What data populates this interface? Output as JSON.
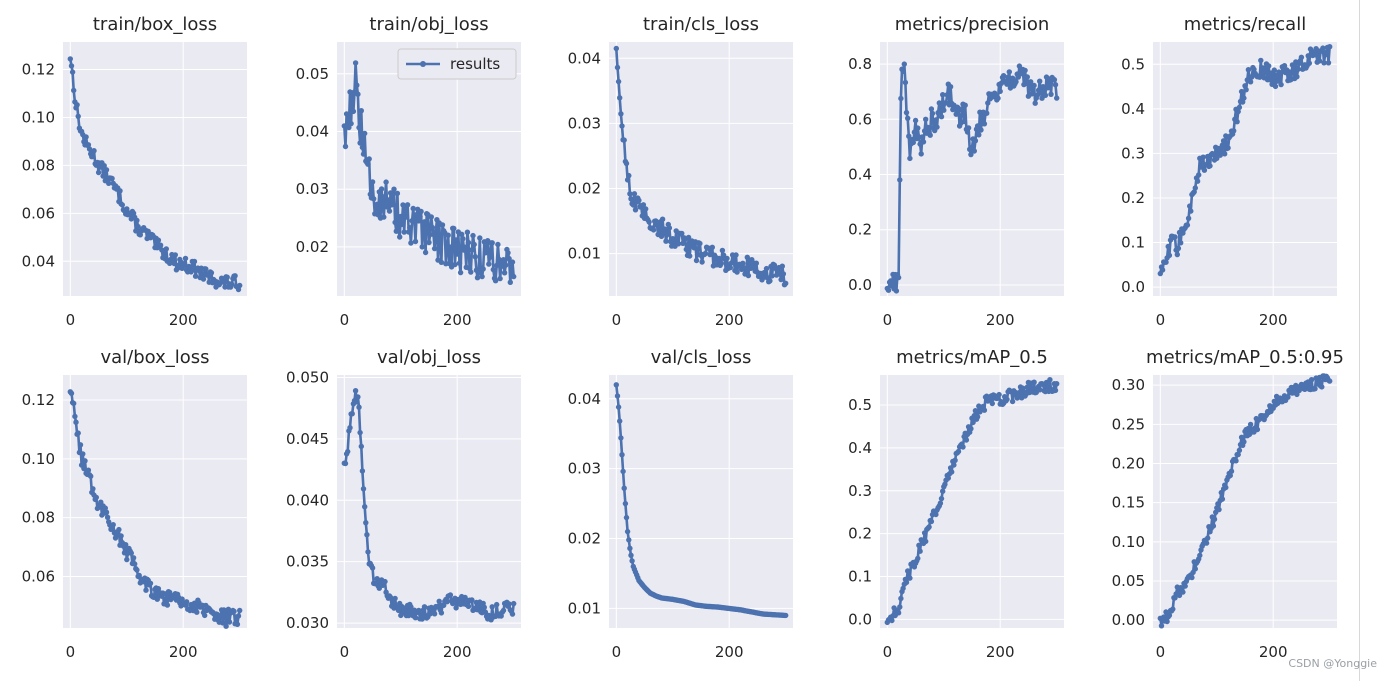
{
  "watermark": "CSDN @Yonggie",
  "style": {
    "panel_bg": "#eaeaf2",
    "grid": "#ffffff",
    "series_color": "#4c72b0",
    "text_color": "#262626",
    "legend_border": "#cccccc"
  },
  "chart_data": [
    {
      "type": "line",
      "title": "train/box_loss",
      "x": [
        0,
        10,
        20,
        30,
        40,
        50,
        60,
        70,
        80,
        90,
        100,
        110,
        120,
        130,
        140,
        150,
        160,
        170,
        180,
        190,
        200,
        210,
        220,
        230,
        240,
        250,
        260,
        270,
        280,
        290,
        300
      ],
      "series": [
        {
          "values": [
            0.126,
            0.105,
            0.093,
            0.088,
            0.085,
            0.08,
            0.077,
            0.074,
            0.07,
            0.066,
            0.061,
            0.058,
            0.054,
            0.052,
            0.05,
            0.047,
            0.045,
            0.043,
            0.041,
            0.039,
            0.039,
            0.038,
            0.037,
            0.035,
            0.034,
            0.033,
            0.032,
            0.031,
            0.031,
            0.031,
            0.031
          ]
        }
      ],
      "xticks": [
        0,
        200
      ],
      "yticks": [
        0.04,
        0.06,
        0.08,
        0.1,
        0.12
      ],
      "ytick_labels": [
        "0.04",
        "0.06",
        "0.08",
        "0.10",
        "0.12"
      ],
      "xlim": [
        -13,
        313
      ],
      "ylim": [
        0.0255,
        0.1315
      ],
      "noise": 0.003,
      "grid": true
    },
    {
      "type": "line",
      "title": "train/obj_loss",
      "legend": "results",
      "x": [
        0,
        10,
        20,
        30,
        40,
        50,
        60,
        70,
        80,
        90,
        100,
        110,
        120,
        130,
        140,
        150,
        160,
        170,
        180,
        190,
        200,
        210,
        220,
        230,
        240,
        250,
        260,
        270,
        280,
        290,
        300
      ],
      "series": [
        {
          "values": [
            0.04,
            0.044,
            0.048,
            0.04,
            0.033,
            0.03,
            0.029,
            0.028,
            0.027,
            0.026,
            0.025,
            0.024,
            0.023,
            0.023,
            0.022,
            0.022,
            0.021,
            0.021,
            0.02,
            0.02,
            0.02,
            0.019,
            0.019,
            0.019,
            0.018,
            0.018,
            0.018,
            0.018,
            0.017,
            0.017,
            0.017
          ]
        }
      ],
      "xticks": [
        0,
        200
      ],
      "yticks": [
        0.02,
        0.03,
        0.04,
        0.05
      ],
      "ytick_labels": [
        "0.02",
        "0.03",
        "0.04",
        "0.05"
      ],
      "xlim": [
        -13,
        313
      ],
      "ylim": [
        0.0115,
        0.0555
      ],
      "noise": 0.004,
      "grid": true
    },
    {
      "type": "line",
      "title": "train/cls_loss",
      "x": [
        0,
        10,
        20,
        30,
        40,
        50,
        60,
        70,
        80,
        90,
        100,
        110,
        120,
        130,
        140,
        150,
        160,
        170,
        180,
        190,
        200,
        210,
        220,
        230,
        240,
        250,
        260,
        270,
        280,
        290,
        300
      ],
      "series": [
        {
          "values": [
            0.04,
            0.03,
            0.022,
            0.018,
            0.017,
            0.016,
            0.015,
            0.0145,
            0.014,
            0.0132,
            0.0125,
            0.012,
            0.0115,
            0.011,
            0.0105,
            0.01,
            0.0098,
            0.0095,
            0.0092,
            0.009,
            0.0088,
            0.0085,
            0.0083,
            0.008,
            0.0078,
            0.0075,
            0.0073,
            0.007,
            0.007,
            0.0068,
            0.0065
          ]
        }
      ],
      "xticks": [
        0,
        200
      ],
      "yticks": [
        0.01,
        0.02,
        0.03,
        0.04
      ],
      "ytick_labels": [
        "0.01",
        "0.02",
        "0.03",
        "0.04"
      ],
      "xlim": [
        -13,
        313
      ],
      "ylim": [
        0.0035,
        0.0425
      ],
      "noise": 0.0015,
      "grid": true
    },
    {
      "type": "line",
      "title": "metrics/precision",
      "x": [
        0,
        10,
        20,
        25,
        30,
        40,
        50,
        60,
        70,
        80,
        90,
        100,
        110,
        120,
        130,
        140,
        150,
        160,
        170,
        180,
        190,
        200,
        210,
        220,
        230,
        240,
        250,
        260,
        270,
        280,
        290,
        300
      ],
      "series": [
        {
          "values": [
            0.0,
            0.0,
            0.02,
            0.84,
            0.78,
            0.5,
            0.55,
            0.5,
            0.58,
            0.6,
            0.62,
            0.65,
            0.7,
            0.6,
            0.62,
            0.6,
            0.5,
            0.58,
            0.62,
            0.66,
            0.7,
            0.72,
            0.74,
            0.76,
            0.75,
            0.74,
            0.72,
            0.7,
            0.71,
            0.71,
            0.71,
            0.72
          ]
        }
      ],
      "xticks": [
        0,
        200
      ],
      "yticks": [
        0.0,
        0.2,
        0.4,
        0.6,
        0.8
      ],
      "ytick_labels": [
        "0.0",
        "0.2",
        "0.4",
        "0.6",
        "0.8"
      ],
      "xlim": [
        -13,
        313
      ],
      "ylim": [
        -0.04,
        0.88
      ],
      "noise": 0.05,
      "grid": true
    },
    {
      "type": "line",
      "title": "metrics/recall",
      "x": [
        0,
        10,
        20,
        30,
        40,
        50,
        60,
        70,
        80,
        90,
        100,
        110,
        120,
        130,
        140,
        150,
        160,
        170,
        180,
        190,
        200,
        210,
        220,
        230,
        240,
        250,
        260,
        270,
        280,
        290,
        300
      ],
      "series": [
        {
          "values": [
            0.02,
            0.06,
            0.1,
            0.09,
            0.13,
            0.15,
            0.22,
            0.28,
            0.28,
            0.29,
            0.3,
            0.31,
            0.33,
            0.36,
            0.41,
            0.45,
            0.48,
            0.49,
            0.49,
            0.48,
            0.47,
            0.47,
            0.48,
            0.48,
            0.49,
            0.5,
            0.51,
            0.52,
            0.525,
            0.52,
            0.52
          ]
        }
      ],
      "xticks": [
        0,
        200
      ],
      "yticks": [
        0.0,
        0.1,
        0.2,
        0.3,
        0.4,
        0.5
      ],
      "ytick_labels": [
        "0.0",
        "0.1",
        "0.2",
        "0.3",
        "0.4",
        "0.5"
      ],
      "xlim": [
        -13,
        313
      ],
      "ylim": [
        -0.02,
        0.55
      ],
      "noise": 0.02,
      "grid": true
    },
    {
      "type": "line",
      "title": "val/box_loss",
      "x": [
        0,
        10,
        20,
        30,
        40,
        50,
        60,
        70,
        80,
        90,
        100,
        110,
        120,
        130,
        140,
        150,
        160,
        170,
        180,
        190,
        200,
        210,
        220,
        230,
        240,
        250,
        260,
        270,
        280,
        290,
        300
      ],
      "series": [
        {
          "values": [
            0.125,
            0.11,
            0.1,
            0.095,
            0.09,
            0.085,
            0.082,
            0.079,
            0.076,
            0.072,
            0.068,
            0.065,
            0.062,
            0.059,
            0.057,
            0.055,
            0.054,
            0.053,
            0.053,
            0.052,
            0.052,
            0.051,
            0.05,
            0.049,
            0.048,
            0.047,
            0.0465,
            0.046,
            0.046,
            0.046,
            0.046
          ]
        }
      ],
      "xticks": [
        0,
        200
      ],
      "yticks": [
        0.06,
        0.08,
        0.1,
        0.12
      ],
      "ytick_labels": [
        "0.06",
        "0.08",
        "0.10",
        "0.12"
      ],
      "xlim": [
        -13,
        313
      ],
      "ylim": [
        0.0425,
        0.1285
      ],
      "noise": 0.003,
      "grid": true
    },
    {
      "type": "line",
      "title": "val/obj_loss",
      "x": [
        0,
        5,
        10,
        15,
        20,
        25,
        30,
        35,
        40,
        45,
        50,
        60,
        70,
        80,
        90,
        100,
        120,
        140,
        160,
        180,
        190,
        200,
        210,
        220,
        230,
        240,
        250,
        260,
        270,
        280,
        290,
        300
      ],
      "series": [
        {
          "values": [
            0.043,
            0.044,
            0.046,
            0.048,
            0.049,
            0.048,
            0.044,
            0.04,
            0.037,
            0.035,
            0.034,
            0.033,
            0.033,
            0.032,
            0.0315,
            0.0312,
            0.031,
            0.0308,
            0.0312,
            0.0315,
            0.0318,
            0.0318,
            0.0316,
            0.0315,
            0.0316,
            0.0313,
            0.031,
            0.0308,
            0.031,
            0.0311,
            0.0312,
            0.0312
          ]
        }
      ],
      "xticks": [
        0,
        200
      ],
      "yticks": [
        0.03,
        0.035,
        0.04,
        0.045,
        0.05
      ],
      "ytick_labels": [
        "0.030",
        "0.035",
        "0.040",
        "0.045",
        "0.050"
      ],
      "xlim": [
        -13,
        313
      ],
      "ylim": [
        0.0296,
        0.0502
      ],
      "noise": 0.0006,
      "grid": true
    },
    {
      "type": "line",
      "title": "val/cls_loss",
      "x": [
        0,
        5,
        10,
        15,
        20,
        25,
        30,
        40,
        50,
        60,
        70,
        80,
        90,
        100,
        120,
        140,
        160,
        180,
        200,
        220,
        240,
        260,
        280,
        300
      ],
      "series": [
        {
          "values": [
            0.042,
            0.038,
            0.032,
            0.026,
            0.021,
            0.018,
            0.016,
            0.014,
            0.013,
            0.0122,
            0.0118,
            0.0115,
            0.0114,
            0.0113,
            0.011,
            0.0105,
            0.0103,
            0.0102,
            0.01,
            0.0098,
            0.0095,
            0.0092,
            0.0091,
            0.009
          ]
        }
      ],
      "xticks": [
        0,
        200
      ],
      "yticks": [
        0.01,
        0.02,
        0.03,
        0.04
      ],
      "ytick_labels": [
        "0.01",
        "0.02",
        "0.03",
        "0.04"
      ],
      "xlim": [
        -13,
        313
      ],
      "ylim": [
        0.0072,
        0.0434
      ],
      "noise": 0.0,
      "grid": true
    },
    {
      "type": "line",
      "title": "metrics/mAP_0.5",
      "x": [
        0,
        10,
        20,
        30,
        40,
        50,
        60,
        70,
        80,
        90,
        100,
        110,
        120,
        130,
        140,
        150,
        160,
        170,
        180,
        190,
        200,
        210,
        220,
        230,
        240,
        250,
        260,
        270,
        280,
        290,
        300
      ],
      "series": [
        {
          "values": [
            0.0,
            0.01,
            0.03,
            0.08,
            0.11,
            0.14,
            0.18,
            0.2,
            0.23,
            0.27,
            0.3,
            0.34,
            0.37,
            0.4,
            0.43,
            0.46,
            0.48,
            0.5,
            0.51,
            0.51,
            0.51,
            0.52,
            0.52,
            0.53,
            0.53,
            0.54,
            0.54,
            0.54,
            0.545,
            0.545,
            0.545
          ]
        }
      ],
      "xticks": [
        0,
        200
      ],
      "yticks": [
        0.0,
        0.1,
        0.2,
        0.3,
        0.4,
        0.5
      ],
      "ytick_labels": [
        "0.0",
        "0.1",
        "0.2",
        "0.3",
        "0.4",
        "0.5"
      ],
      "xlim": [
        -13,
        313
      ],
      "ylim": [
        -0.02,
        0.57
      ],
      "noise": 0.015,
      "grid": true
    },
    {
      "type": "line",
      "title": "metrics/mAP_0.5:0.95",
      "x": [
        0,
        10,
        20,
        30,
        40,
        50,
        60,
        70,
        80,
        90,
        100,
        110,
        120,
        130,
        140,
        150,
        160,
        170,
        180,
        190,
        200,
        210,
        220,
        230,
        240,
        250,
        260,
        270,
        280,
        290,
        300
      ],
      "series": [
        {
          "values": [
            0.0,
            0.003,
            0.015,
            0.035,
            0.04,
            0.05,
            0.07,
            0.085,
            0.1,
            0.12,
            0.14,
            0.16,
            0.18,
            0.2,
            0.22,
            0.235,
            0.245,
            0.25,
            0.255,
            0.265,
            0.275,
            0.28,
            0.285,
            0.29,
            0.295,
            0.298,
            0.3,
            0.302,
            0.303,
            0.304,
            0.304
          ]
        }
      ],
      "xticks": [
        0,
        200
      ],
      "yticks": [
        0.0,
        0.05,
        0.1,
        0.15,
        0.2,
        0.25,
        0.3
      ],
      "ytick_labels": [
        "0.00",
        "0.05",
        "0.10",
        "0.15",
        "0.20",
        "0.25",
        "0.30"
      ],
      "xlim": [
        -13,
        313
      ],
      "ylim": [
        -0.01,
        0.313
      ],
      "noise": 0.008,
      "grid": true
    }
  ]
}
